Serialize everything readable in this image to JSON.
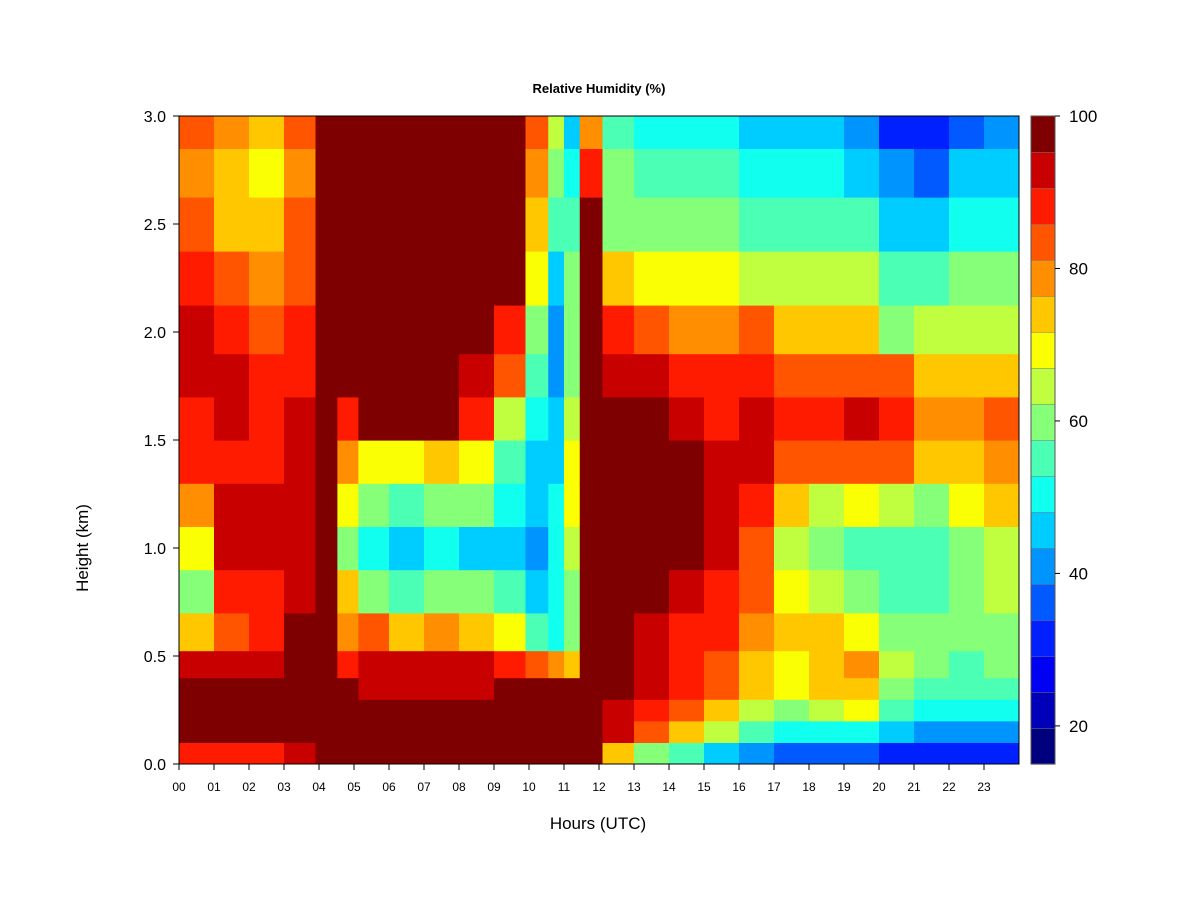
{
  "chart_data": {
    "type": "heatmap",
    "title": "Relative Humidity (%)",
    "xlabel": "Hours (UTC)",
    "ylabel": "Height (km)",
    "xlim": [
      0,
      24
    ],
    "ylim": [
      0.0,
      3.0
    ],
    "x_tick_labels": [
      "00",
      "01",
      "02",
      "03",
      "04",
      "05",
      "06",
      "07",
      "08",
      "09",
      "10",
      "11",
      "12",
      "13",
      "14",
      "15",
      "16",
      "17",
      "18",
      "19",
      "20",
      "21",
      "22",
      "23"
    ],
    "y_tick_labels": [
      "0.0",
      "0.5",
      "1.0",
      "1.5",
      "2.0",
      "2.5",
      "3.0"
    ],
    "y_ticks": [
      0.0,
      0.5,
      1.0,
      1.5,
      2.0,
      2.5,
      3.0
    ],
    "colorbar": {
      "range": [
        15,
        100
      ],
      "step": 5,
      "tick_values": [
        20,
        40,
        60,
        80,
        100
      ],
      "tick_labels": [
        "20",
        "40",
        "60",
        "80",
        "100"
      ],
      "colors": [
        "#00007F",
        "#0000B8",
        "#0000F2",
        "#0020FF",
        "#005AFF",
        "#0094FF",
        "#00CDFF",
        "#10FFEF",
        "#4BFFB4",
        "#86FF79",
        "#C0FF3F",
        "#FBFF04",
        "#FFC700",
        "#FF8E00",
        "#FF5500",
        "#FF1B00",
        "#C90000",
        "#7F0000"
      ]
    },
    "height_levels_km": [
      0.05,
      0.15,
      0.25,
      0.35,
      0.45,
      0.6,
      0.8,
      1.0,
      1.2,
      1.4,
      1.6,
      1.8,
      2.0,
      2.25,
      2.5,
      2.75,
      2.95
    ],
    "hour_columns": [
      0.5,
      1.5,
      2.5,
      3.5,
      4.3,
      4.75,
      5.5,
      6.5,
      7.5,
      8.5,
      9.5,
      10.3,
      10.8,
      11.2,
      11.7,
      12.5,
      13.5,
      14.5,
      15.5,
      16.5,
      17.5,
      18.5,
      19.5,
      20.5,
      21.5,
      22.5,
      23.5
    ],
    "rh_percent": [
      [
        88,
        97,
        100,
        100,
        95,
        75,
        60,
        70,
        80,
        88,
        90,
        92,
        92,
        88,
        82,
        80,
        82
      ],
      [
        86,
        97,
        100,
        100,
        95,
        85,
        88,
        92,
        92,
        90,
        92,
        92,
        88,
        84,
        75,
        72,
        78
      ],
      [
        86,
        97,
        100,
        100,
        95,
        88,
        90,
        92,
        92,
        90,
        88,
        88,
        84,
        80,
        72,
        70,
        74
      ],
      [
        92,
        99,
        100,
        100,
        100,
        96,
        94,
        95,
        95,
        94,
        92,
        90,
        88,
        85,
        82,
        80,
        82
      ],
      [
        97,
        100,
        100,
        100,
        100,
        100,
        100,
        100,
        100,
        100,
        100,
        100,
        100,
        100,
        100,
        100,
        100
      ],
      [
        100,
        100,
        100,
        97,
        88,
        80,
        74,
        62,
        70,
        80,
        90,
        100,
        100,
        100,
        100,
        100,
        100
      ],
      [
        100,
        100,
        100,
        92,
        95,
        82,
        62,
        52,
        58,
        70,
        100,
        100,
        100,
        100,
        100,
        100,
        100
      ],
      [
        100,
        100,
        100,
        92,
        95,
        76,
        55,
        48,
        55,
        70,
        100,
        100,
        100,
        100,
        96,
        100,
        100
      ],
      [
        100,
        100,
        100,
        92,
        94,
        78,
        60,
        52,
        62,
        74,
        100,
        100,
        100,
        100,
        96,
        100,
        100
      ],
      [
        100,
        100,
        100,
        94,
        92,
        74,
        58,
        48,
        58,
        70,
        88,
        95,
        100,
        96,
        100,
        100,
        100
      ],
      [
        100,
        100,
        100,
        96,
        90,
        70,
        55,
        48,
        50,
        55,
        65,
        82,
        90,
        100,
        100,
        100,
        100
      ],
      [
        100,
        100,
        100,
        100,
        85,
        55,
        48,
        42,
        45,
        48,
        50,
        55,
        62,
        68,
        75,
        80,
        85
      ],
      [
        100,
        100,
        100,
        100,
        80,
        52,
        50,
        52,
        50,
        48,
        45,
        40,
        42,
        48,
        55,
        60,
        65
      ],
      [
        100,
        100,
        100,
        100,
        75,
        62,
        62,
        65,
        68,
        68,
        65,
        62,
        60,
        58,
        55,
        50,
        45
      ],
      [
        100,
        100,
        100,
        100,
        100,
        100,
        100,
        100,
        100,
        100,
        100,
        100,
        100,
        100,
        100,
        90,
        80
      ],
      [
        72,
        92,
        95,
        97,
        100,
        100,
        100,
        100,
        100,
        100,
        100,
        94,
        86,
        72,
        62,
        58,
        55
      ],
      [
        58,
        82,
        90,
        92,
        95,
        94,
        96,
        100,
        100,
        100,
        100,
        92,
        82,
        68,
        58,
        55,
        52
      ],
      [
        54,
        72,
        84,
        88,
        88,
        90,
        92,
        98,
        100,
        98,
        94,
        90,
        80,
        68,
        58,
        55,
        52
      ],
      [
        48,
        66,
        76,
        82,
        85,
        86,
        88,
        92,
        92,
        92,
        90,
        88,
        78,
        68,
        58,
        55,
        50
      ],
      [
        42,
        56,
        66,
        72,
        75,
        78,
        82,
        85,
        88,
        92,
        92,
        88,
        82,
        66,
        56,
        52,
        48
      ],
      [
        35,
        50,
        62,
        68,
        70,
        74,
        68,
        65,
        72,
        84,
        90,
        85,
        76,
        65,
        56,
        50,
        48
      ],
      [
        34,
        50,
        65,
        72,
        74,
        76,
        64,
        58,
        66,
        82,
        90,
        84,
        72,
        64,
        55,
        50,
        48
      ],
      [
        34,
        52,
        68,
        76,
        78,
        70,
        62,
        55,
        70,
        85,
        92,
        84,
        75,
        66,
        55,
        48,
        42
      ],
      [
        32,
        44,
        54,
        60,
        64,
        60,
        56,
        56,
        66,
        82,
        88,
        82,
        62,
        54,
        46,
        40,
        32
      ],
      [
        32,
        42,
        52,
        56,
        58,
        60,
        56,
        56,
        62,
        74,
        80,
        75,
        64,
        56,
        46,
        38,
        30
      ],
      [
        30,
        40,
        50,
        54,
        56,
        58,
        58,
        60,
        68,
        76,
        80,
        72,
        65,
        58,
        50,
        44,
        38
      ],
      [
        32,
        42,
        52,
        56,
        58,
        62,
        64,
        66,
        72,
        78,
        82,
        75,
        66,
        58,
        52,
        46,
        40
      ]
    ]
  }
}
